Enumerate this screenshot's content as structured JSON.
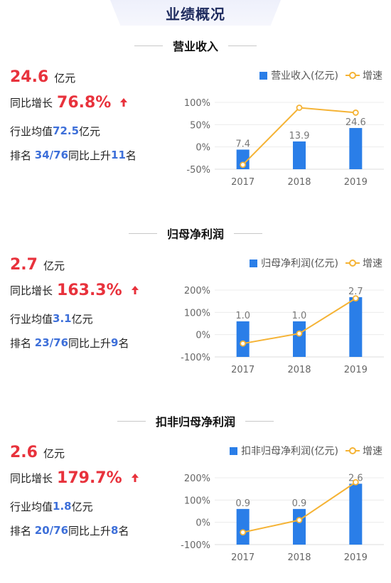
{
  "page_title": "业绩概况",
  "colors": {
    "bar": "#2a7ee8",
    "line": "#f5b335",
    "highlight": "#e8323c",
    "blue_text": "#3d6fd9"
  },
  "sections": [
    {
      "title": "营业收入",
      "value": "24.6",
      "unit": "亿元",
      "growth_label": "同比增长",
      "growth": "76.8%",
      "avg_prefix": "行业均值",
      "avg_value": "72.5",
      "avg_unit": "亿元",
      "rank_prefix": "排名 ",
      "rank": "34/76",
      "rank_mid": "同比上升",
      "rank_change": "11",
      "rank_suffix": "名",
      "legend_bar": "营业收入(亿元)",
      "legend_line": "增速",
      "y_ticks": [
        "100%",
        "50%",
        "0%",
        "-50%"
      ]
    },
    {
      "title": "归母净利润",
      "value": "2.7",
      "unit": "亿元",
      "growth_label": "同比增长",
      "growth": "163.3%",
      "avg_prefix": "行业均值",
      "avg_value": "3.1",
      "avg_unit": "亿元",
      "rank_prefix": "排名 ",
      "rank": "23/76",
      "rank_mid": "同比上升",
      "rank_change": "9",
      "rank_suffix": "名",
      "legend_bar": "归母净利润(亿元)",
      "legend_line": "增速",
      "y_ticks": [
        "200%",
        "100%",
        "0%",
        "-100%"
      ]
    },
    {
      "title": "扣非归母净利润",
      "value": "2.6",
      "unit": "亿元",
      "growth_label": "同比增长",
      "growth": "179.7%",
      "avg_prefix": "行业均值",
      "avg_value": "1.8",
      "avg_unit": "亿元",
      "rank_prefix": "排名 ",
      "rank": "20/76",
      "rank_mid": "同比上升",
      "rank_change": "8",
      "rank_suffix": "名",
      "legend_bar": "扣非归母净利润(亿元)",
      "legend_line": "增速",
      "y_ticks": [
        "200%",
        "100%",
        "0%",
        "-100%"
      ]
    }
  ],
  "chart_data": [
    {
      "type": "bar",
      "categories": [
        "2017",
        "2018",
        "2019"
      ],
      "series": [
        {
          "name": "营业收入(亿元)",
          "type": "bar",
          "values": [
            7.4,
            13.9,
            24.6
          ],
          "labels": [
            "7.4",
            "13.9",
            "24.6"
          ]
        },
        {
          "name": "增速",
          "type": "line",
          "values": [
            -40,
            88,
            77
          ]
        }
      ],
      "ylim": [
        -50,
        100
      ],
      "yticks": [
        100,
        50,
        0,
        -50
      ],
      "ylabel_format": "%",
      "bar_ylim": [
        -8.2,
        45
      ]
    },
    {
      "type": "bar",
      "categories": [
        "2017",
        "2018",
        "2019"
      ],
      "series": [
        {
          "name": "归母净利润(亿元)",
          "type": "bar",
          "values": [
            1.0,
            1.0,
            2.7
          ],
          "labels": [
            "1.0",
            "1.0",
            "2.7"
          ]
        },
        {
          "name": "增速",
          "type": "line",
          "values": [
            -40,
            5,
            163
          ]
        }
      ],
      "ylim": [
        -100,
        200
      ],
      "yticks": [
        200,
        100,
        0,
        -100
      ],
      "ylabel_format": "%",
      "bar_ylim": [
        -1.5,
        3.2
      ]
    },
    {
      "type": "bar",
      "categories": [
        "2017",
        "2018",
        "2019"
      ],
      "series": [
        {
          "name": "扣非归母净利润(亿元)",
          "type": "bar",
          "values": [
            0.9,
            0.9,
            2.6
          ],
          "labels": [
            "0.9",
            "0.9",
            "2.6"
          ]
        },
        {
          "name": "增速",
          "type": "line",
          "values": [
            -45,
            10,
            180
          ]
        }
      ],
      "ylim": [
        -100,
        200
      ],
      "yticks": [
        200,
        100,
        0,
        -100
      ],
      "ylabel_format": "%",
      "bar_ylim": [
        -1.5,
        3.0
      ]
    }
  ]
}
